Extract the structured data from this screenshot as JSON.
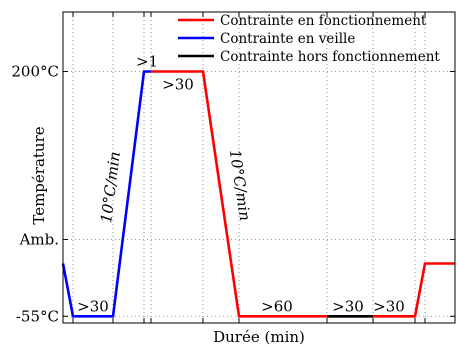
{
  "chart_data": {
    "type": "line",
    "title": "",
    "xlabel": "Durée (min)",
    "ylabel": "Température",
    "yticks": [
      {
        "value": -55,
        "label": "-55°C"
      },
      {
        "value": 25,
        "label": "Amb."
      },
      {
        "value": 200,
        "label": "200°C"
      }
    ],
    "ylim": [
      -62,
      262
    ],
    "xlim": [
      0,
      392
    ],
    "grid": true,
    "legend_position": "top-right",
    "series": [
      {
        "name": "Contrainte en fonctionnement",
        "color": "#ff0000",
        "segments": [
          [
            [
              88,
              200
            ],
            [
              140,
              200
            ],
            [
              176,
              -55
            ],
            [
              352,
              -55
            ],
            [
              362,
              0
            ],
            [
              392,
              0
            ]
          ]
        ]
      },
      {
        "name": "Contrainte en veille",
        "color": "#0000ff",
        "segments": [
          [
            [
              0,
              0
            ],
            [
              10,
              -55
            ],
            [
              50,
              -55
            ],
            [
              81,
              200
            ],
            [
              88,
              200
            ]
          ]
        ]
      },
      {
        "name": "Contrainte hors fonctionnement",
        "color": "#000000",
        "segments": [
          [
            [
              264,
              -55
            ],
            [
              310,
              -55
            ]
          ]
        ]
      }
    ],
    "annotations": [
      {
        "text": ">30",
        "x": 30,
        "y": -55,
        "anchor": "above"
      },
      {
        "text": ">1",
        "x": 84,
        "y": 200,
        "anchor": "above"
      },
      {
        "text": ">30",
        "x": 115,
        "y": 200,
        "anchor": "below"
      },
      {
        "text": ">60",
        "x": 214,
        "y": -55,
        "anchor": "above"
      },
      {
        "text": ">30",
        "x": 285,
        "y": -55,
        "anchor": "above"
      },
      {
        "text": ">30",
        "x": 326,
        "y": -55,
        "anchor": "above"
      }
    ],
    "slope_labels": [
      {
        "text": "10°C/min",
        "series": "Contrainte en veille"
      },
      {
        "text": "10°C/min",
        "series": "Contrainte en fonctionnement"
      }
    ]
  }
}
